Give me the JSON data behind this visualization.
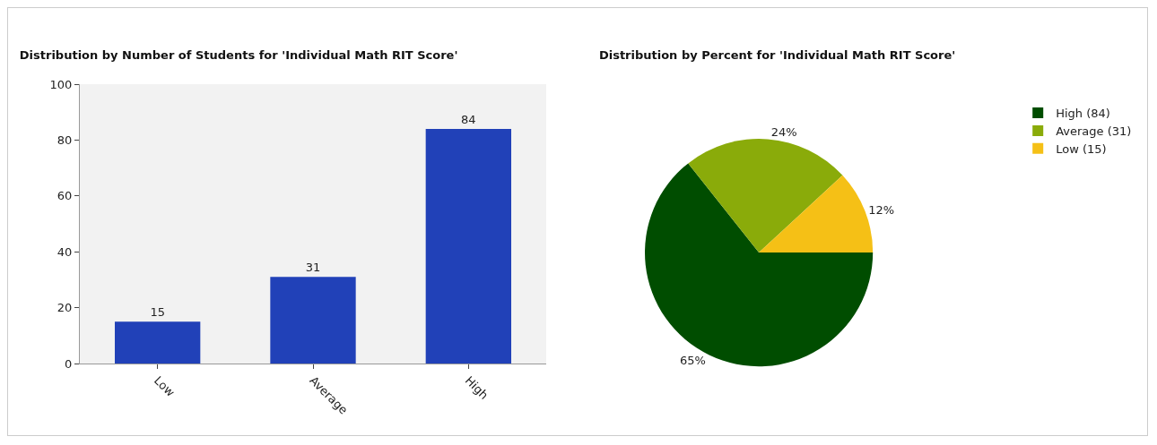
{
  "chart_data": [
    {
      "type": "bar",
      "title": "Distribution by Number of Students for 'Individual Math RIT Score'",
      "categories": [
        "Low",
        "Average",
        "High"
      ],
      "values": [
        15,
        31,
        84
      ],
      "color": "#2141b8",
      "ylim": [
        0,
        100
      ],
      "yticks": [
        0,
        20,
        40,
        60,
        80,
        100
      ],
      "data_labels": true
    },
    {
      "type": "pie",
      "title": "Distribution by Percent for 'Individual Math RIT Score'",
      "categories": [
        "High (84)",
        "Average (31)",
        "Low (15)"
      ],
      "values": [
        65,
        24,
        12
      ],
      "value_labels": [
        "65%",
        "24%",
        "12%"
      ],
      "colors": [
        "#004d00",
        "#8aab0a",
        "#f5c016"
      ],
      "legend": "right"
    }
  ]
}
